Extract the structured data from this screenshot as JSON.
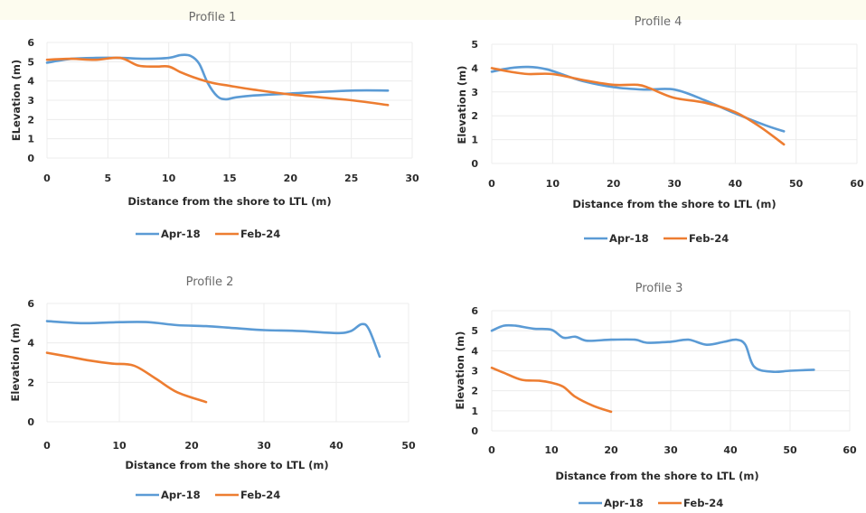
{
  "chart_data": [
    {
      "type": "line",
      "title": "Profile 1",
      "xlabel": "Distance from the shore to LTL (m)",
      "ylabel": "ELevation (m)",
      "xlim": [
        0,
        30
      ],
      "ylim": [
        0,
        6
      ],
      "xticks": [
        0,
        5,
        10,
        15,
        20,
        25,
        30
      ],
      "yticks": [
        0,
        1,
        2,
        3,
        4,
        5,
        6
      ],
      "grid": true,
      "legend": "bottom",
      "series": [
        {
          "name": "Apr-18",
          "color": "#5b9bd5",
          "x": [
            0,
            2,
            4,
            6,
            8,
            10,
            11,
            11.8,
            12.5,
            13.2,
            14,
            14.7,
            15.5,
            17,
            20,
            25,
            28
          ],
          "y": [
            4.95,
            5.15,
            5.2,
            5.2,
            5.15,
            5.2,
            5.35,
            5.3,
            4.9,
            3.9,
            3.2,
            3.05,
            3.15,
            3.25,
            3.35,
            3.5,
            3.5
          ]
        },
        {
          "name": "Feb-24",
          "color": "#ed7d31",
          "x": [
            0,
            2,
            4,
            6,
            7.5,
            9,
            10,
            11,
            12,
            13,
            14,
            15,
            17,
            20,
            25,
            28
          ],
          "y": [
            5.1,
            5.15,
            5.1,
            5.2,
            4.8,
            4.75,
            4.75,
            4.45,
            4.2,
            4.0,
            3.85,
            3.75,
            3.55,
            3.3,
            3.0,
            2.75
          ]
        }
      ]
    },
    {
      "type": "line",
      "title": "Profile 4",
      "xlabel": "Distance from the shore to LTL (m)",
      "ylabel": "Elevation (m)",
      "xlim": [
        0,
        60
      ],
      "ylim": [
        0,
        5
      ],
      "xticks": [
        0,
        10,
        20,
        30,
        40,
        50,
        60
      ],
      "yticks": [
        0,
        1,
        2,
        3,
        4,
        5
      ],
      "grid": true,
      "legend": "bottom",
      "series": [
        {
          "name": "Apr-18",
          "color": "#5b9bd5",
          "x": [
            0,
            3,
            6,
            9,
            12,
            15,
            20,
            25,
            30,
            35,
            40,
            45,
            48
          ],
          "y": [
            3.85,
            4.0,
            4.05,
            3.95,
            3.7,
            3.45,
            3.2,
            3.1,
            3.1,
            2.65,
            2.1,
            1.6,
            1.35
          ]
        },
        {
          "name": "Feb-24",
          "color": "#ed7d31",
          "x": [
            0,
            3,
            6,
            10,
            15,
            20,
            24,
            26,
            30,
            35,
            40,
            44,
            48
          ],
          "y": [
            4.0,
            3.85,
            3.75,
            3.75,
            3.5,
            3.3,
            3.3,
            3.15,
            2.75,
            2.55,
            2.15,
            1.55,
            0.8
          ]
        }
      ]
    },
    {
      "type": "line",
      "title": "Profile 2",
      "xlabel": "Distance from the shore to LTL (m)",
      "ylabel": "Elevation (m)",
      "xlim": [
        0,
        50
      ],
      "ylim": [
        0,
        6
      ],
      "xticks": [
        0,
        10,
        20,
        30,
        40,
        50
      ],
      "yticks": [
        0,
        2,
        4,
        6
      ],
      "grid": true,
      "legend": "bottom",
      "series": [
        {
          "name": "Apr-18",
          "color": "#5b9bd5",
          "x": [
            0,
            5,
            10,
            14,
            18,
            22,
            26,
            30,
            35,
            40,
            42,
            43.5,
            44.5,
            46
          ],
          "y": [
            5.1,
            5.0,
            5.05,
            5.05,
            4.9,
            4.85,
            4.75,
            4.65,
            4.6,
            4.5,
            4.6,
            4.95,
            4.7,
            3.3
          ]
        },
        {
          "name": "Feb-24",
          "color": "#ed7d31",
          "x": [
            0,
            3,
            6,
            9,
            12,
            15,
            18,
            22
          ],
          "y": [
            3.5,
            3.3,
            3.1,
            2.95,
            2.85,
            2.2,
            1.5,
            1.0
          ]
        }
      ]
    },
    {
      "type": "line",
      "title": "Profile 3",
      "xlabel": "Distance from the shore to LTL (m)",
      "ylabel": "Elevation (m)",
      "xlim": [
        0,
        60
      ],
      "ylim": [
        0,
        6
      ],
      "xticks": [
        0,
        10,
        20,
        30,
        40,
        50,
        60
      ],
      "yticks": [
        0,
        1,
        2,
        3,
        4,
        5,
        6
      ],
      "grid": true,
      "legend": "bottom",
      "series": [
        {
          "name": "Apr-18",
          "color": "#5b9bd5",
          "x": [
            0,
            2,
            4,
            7,
            10,
            12,
            14,
            16,
            20,
            24,
            26,
            30,
            33,
            36,
            39,
            41,
            42.5,
            44,
            47,
            50,
            54
          ],
          "y": [
            5.0,
            5.25,
            5.25,
            5.1,
            5.05,
            4.65,
            4.7,
            4.5,
            4.55,
            4.55,
            4.4,
            4.45,
            4.55,
            4.3,
            4.45,
            4.55,
            4.3,
            3.2,
            2.95,
            3.0,
            3.05
          ]
        },
        {
          "name": "Feb-24",
          "color": "#ed7d31",
          "x": [
            0,
            2,
            5,
            8,
            10,
            12,
            14,
            17,
            20
          ],
          "y": [
            3.15,
            2.9,
            2.55,
            2.5,
            2.4,
            2.2,
            1.7,
            1.25,
            0.95
          ]
        }
      ]
    }
  ]
}
